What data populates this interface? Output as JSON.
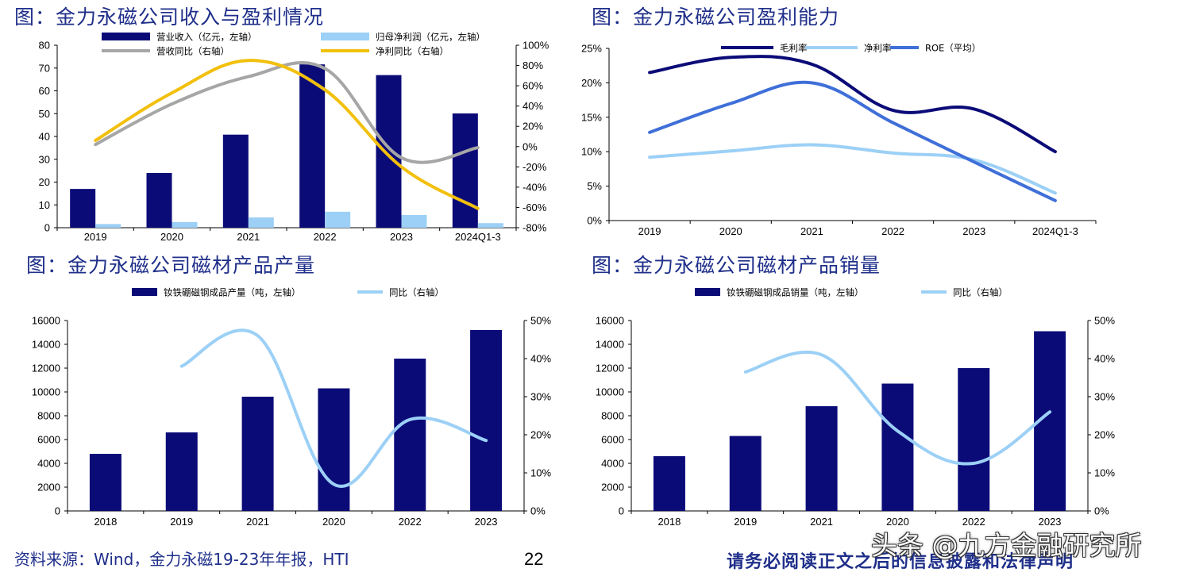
{
  "footer": {
    "source": "资料来源：Wind，金力永磁19-23年年报，HTI",
    "page": "22",
    "disclaimer": "请务必阅读正文之后的信息披露和法律声明",
    "watermark": "头条 @九方金融研究所"
  },
  "colors": {
    "navy": "#0b0b78",
    "light_blue": "#9cd0f6",
    "gray": "#a6a6a6",
    "yellow": "#f2c00d",
    "mid_blue": "#3f6fd8",
    "title_blue": "#1f2f8a"
  },
  "chart_data": [
    {
      "id": "revenue-profit",
      "type": "bar",
      "title": "图：金力永磁公司收入与盈利情况",
      "categories": [
        "2019",
        "2020",
        "2021",
        "2022",
        "2023",
        "2024Q1-3"
      ],
      "series": [
        {
          "name": "营业收入（亿元，左轴）",
          "kind": "bar",
          "axis": "left",
          "color": "#0b0b78",
          "values": [
            17,
            24,
            40.8,
            71.6,
            66.9,
            50.1
          ]
        },
        {
          "name": "归母净利润（亿元，左轴）",
          "kind": "bar",
          "axis": "left",
          "color": "#9cd0f6",
          "values": [
            1.6,
            2.5,
            4.5,
            7.0,
            5.6,
            2.0
          ]
        },
        {
          "name": "营收同比（右轴）",
          "kind": "line",
          "axis": "right",
          "color": "#a6a6a6",
          "values": [
            0.02,
            0.42,
            0.69,
            0.77,
            -0.11,
            -0.01
          ]
        },
        {
          "name": "净利同比（右轴）",
          "kind": "line",
          "axis": "right",
          "color": "#f2c00d",
          "values": [
            0.06,
            0.53,
            0.85,
            0.56,
            -0.2,
            -0.61
          ]
        }
      ],
      "ylim": [
        0,
        80
      ],
      "y_ticks": [
        "0",
        "10",
        "20",
        "30",
        "40",
        "50",
        "60",
        "70",
        "80"
      ],
      "y2lim": [
        -0.8,
        1.0
      ],
      "y2_ticks": [
        "-80%",
        "-60%",
        "-40%",
        "-20%",
        "0%",
        "20%",
        "40%",
        "60%",
        "80%",
        "100%"
      ],
      "legend": "top"
    },
    {
      "id": "profitability",
      "type": "line",
      "title": "图：金力永磁公司盈利能力",
      "categories": [
        "2019",
        "2020",
        "2021",
        "2022",
        "2023",
        "2024Q1-3"
      ],
      "series": [
        {
          "name": "毛利率",
          "color": "#0b0b78",
          "values": [
            0.215,
            0.237,
            0.227,
            0.16,
            0.162,
            0.1
          ]
        },
        {
          "name": "净利率",
          "color": "#9cd0f6",
          "values": [
            0.092,
            0.101,
            0.11,
            0.098,
            0.088,
            0.04
          ]
        },
        {
          "name": "ROE（平均）",
          "color": "#3f6fd8",
          "values": [
            0.128,
            0.17,
            0.2,
            0.142,
            0.085,
            0.029
          ]
        }
      ],
      "ylim": [
        0,
        0.25
      ],
      "y_ticks": [
        "0%",
        "5%",
        "10%",
        "15%",
        "20%",
        "25%"
      ],
      "legend": "top"
    },
    {
      "id": "production",
      "type": "bar",
      "title": "图：金力永磁公司磁材产品产量",
      "categories": [
        "2018",
        "2019",
        "2021",
        "2020",
        "2022",
        "2023"
      ],
      "series": [
        {
          "name": "钕铁硼磁钢成品产量（吨，左轴）",
          "kind": "bar",
          "axis": "left",
          "color": "#0b0b78",
          "values": [
            4800,
            6600,
            9600,
            10300,
            12800,
            15200
          ]
        },
        {
          "name": "同比（右轴）",
          "kind": "line",
          "axis": "right",
          "color": "#9cd0f6",
          "values": [
            null,
            0.38,
            0.46,
            0.07,
            0.24,
            0.185
          ]
        }
      ],
      "ylim": [
        0,
        16000
      ],
      "y_ticks": [
        "0",
        "2000",
        "4000",
        "6000",
        "8000",
        "10000",
        "12000",
        "14000",
        "16000"
      ],
      "y2lim": [
        0,
        0.5
      ],
      "y2_ticks": [
        "0%",
        "10%",
        "20%",
        "30%",
        "40%",
        "50%"
      ],
      "legend": "top"
    },
    {
      "id": "sales",
      "type": "bar",
      "title": "图：金力永磁公司磁材产品销量",
      "categories": [
        "2018",
        "2019",
        "2021",
        "2020",
        "2022",
        "2023"
      ],
      "series": [
        {
          "name": "钕铁硼磁钢成品销量（吨，左轴）",
          "kind": "bar",
          "axis": "left",
          "color": "#0b0b78",
          "values": [
            4600,
            6300,
            8800,
            10700,
            12000,
            15100
          ]
        },
        {
          "name": "同比（右轴）",
          "kind": "line",
          "axis": "right",
          "color": "#9cd0f6",
          "values": [
            null,
            0.365,
            0.41,
            0.21,
            0.125,
            0.26
          ]
        }
      ],
      "ylim": [
        0,
        16000
      ],
      "y_ticks": [
        "0",
        "2000",
        "4000",
        "6000",
        "8000",
        "10000",
        "12000",
        "14000",
        "16000"
      ],
      "y2lim": [
        0,
        0.5
      ],
      "y2_ticks": [
        "0%",
        "10%",
        "20%",
        "30%",
        "40%",
        "50%"
      ],
      "legend": "top"
    }
  ]
}
